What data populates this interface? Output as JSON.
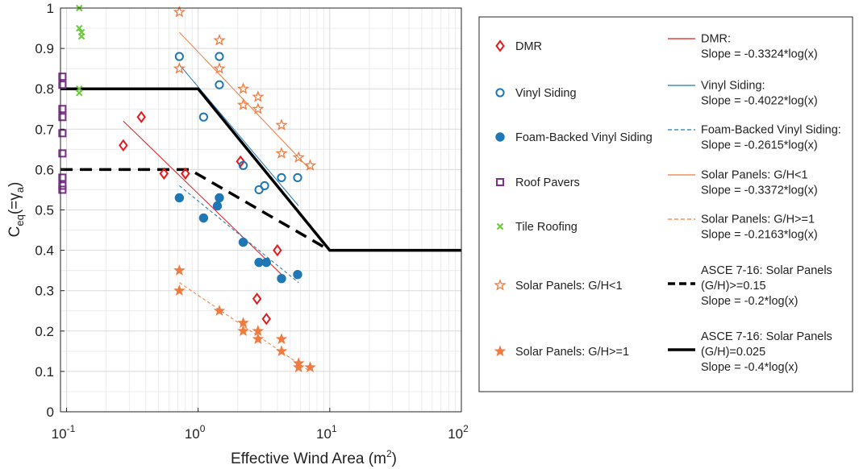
{
  "chart_data": {
    "type": "scatter",
    "x_scale": "log",
    "xlabel": "Effective Wind Area (m",
    "xlabel_sup": "2",
    "xlabel_close": ")",
    "ylabel_main": "C",
    "ylabel_sub_eq": "eq",
    "ylabel_paren": "(=γ",
    "ylabel_sub_a": "a",
    "ylabel_close": ")",
    "xlim": [
      0.09,
      100
    ],
    "ylim": [
      0,
      1
    ],
    "x_tick_base": "10",
    "x_ticks": [
      {
        "value": 0.1,
        "exp": "-1"
      },
      {
        "value": 1,
        "exp": "0"
      },
      {
        "value": 10,
        "exp": "1"
      },
      {
        "value": 100,
        "exp": "2"
      }
    ],
    "y_ticks": [
      "0",
      "0.1",
      "0.2",
      "0.3",
      "0.4",
      "0.5",
      "0.6",
      "0.7",
      "0.8",
      "0.9",
      "1"
    ],
    "grid": true,
    "colors": {
      "dmr": "#e41a1c",
      "vinyl": "#1f77b4",
      "solar": "#f07b3f",
      "pavers": "#7e2f8e",
      "tile": "#66cc33",
      "asce": "#000000"
    },
    "scatter_series": [
      {
        "name": "DMR",
        "marker": "diamond",
        "color": "#e41a1c",
        "points": [
          [
            0.27,
            0.66
          ],
          [
            0.37,
            0.73
          ],
          [
            0.55,
            0.59
          ],
          [
            0.8,
            0.59
          ],
          [
            2.1,
            0.62
          ],
          [
            2.8,
            0.28
          ],
          [
            3.3,
            0.23
          ],
          [
            4.0,
            0.4
          ]
        ]
      },
      {
        "name": "Vinyl Siding",
        "marker": "circle-open",
        "color": "#1f77b4",
        "points": [
          [
            0.72,
            0.88
          ],
          [
            1.1,
            0.73
          ],
          [
            1.45,
            0.88
          ],
          [
            1.45,
            0.81
          ],
          [
            2.2,
            0.61
          ],
          [
            2.9,
            0.55
          ],
          [
            3.2,
            0.56
          ],
          [
            4.3,
            0.58
          ],
          [
            5.7,
            0.58
          ]
        ]
      },
      {
        "name": "Foam-Backed Vinyl Siding",
        "marker": "circle-filled",
        "color": "#1f77b4",
        "points": [
          [
            0.72,
            0.53
          ],
          [
            1.1,
            0.48
          ],
          [
            1.4,
            0.51
          ],
          [
            1.45,
            0.53
          ],
          [
            2.2,
            0.42
          ],
          [
            2.9,
            0.37
          ],
          [
            3.3,
            0.37
          ],
          [
            4.3,
            0.33
          ],
          [
            5.7,
            0.34
          ]
        ]
      },
      {
        "name": "Roof Pavers",
        "marker": "square",
        "color": "#7e2f8e",
        "points": [
          [
            0.093,
            0.83
          ],
          [
            0.093,
            0.81
          ],
          [
            0.093,
            0.75
          ],
          [
            0.093,
            0.73
          ],
          [
            0.093,
            0.69
          ],
          [
            0.093,
            0.64
          ],
          [
            0.093,
            0.58
          ],
          [
            0.093,
            0.56
          ],
          [
            0.093,
            0.55
          ]
        ]
      },
      {
        "name": "Tile Roofing",
        "marker": "x",
        "color": "#66cc33",
        "points": [
          [
            0.125,
            1.0
          ],
          [
            0.125,
            0.95
          ],
          [
            0.13,
            0.94
          ],
          [
            0.13,
            0.93
          ],
          [
            0.125,
            0.8
          ],
          [
            0.125,
            0.79
          ]
        ]
      },
      {
        "name": "Solar Panels: G/H<1",
        "marker": "star-open",
        "color": "#f07b3f",
        "points": [
          [
            0.72,
            0.99
          ],
          [
            0.72,
            0.85
          ],
          [
            1.45,
            0.92
          ],
          [
            1.45,
            0.85
          ],
          [
            2.2,
            0.8
          ],
          [
            2.2,
            0.76
          ],
          [
            2.85,
            0.78
          ],
          [
            2.85,
            0.75
          ],
          [
            4.3,
            0.71
          ],
          [
            4.3,
            0.64
          ],
          [
            5.8,
            0.63
          ],
          [
            7.1,
            0.61
          ]
        ]
      },
      {
        "name": "Solar Panels: G/H>=1",
        "marker": "star-filled",
        "color": "#f07b3f",
        "points": [
          [
            0.72,
            0.35
          ],
          [
            0.72,
            0.3
          ],
          [
            1.45,
            0.25
          ],
          [
            2.2,
            0.22
          ],
          [
            2.2,
            0.2
          ],
          [
            2.85,
            0.2
          ],
          [
            2.85,
            0.18
          ],
          [
            4.3,
            0.18
          ],
          [
            4.3,
            0.15
          ],
          [
            5.8,
            0.12
          ],
          [
            5.8,
            0.11
          ],
          [
            7.1,
            0.11
          ]
        ]
      }
    ],
    "fit_lines": [
      {
        "name": "DMR",
        "color": "#e41a1c",
        "dash": false,
        "x": [
          0.27,
          4.3
        ],
        "y": [
          0.72,
          0.34
        ]
      },
      {
        "name": "Vinyl Siding",
        "color": "#1f77b4",
        "dash": false,
        "x": [
          0.72,
          5.8
        ],
        "y": [
          0.86,
          0.51
        ]
      },
      {
        "name": "Foam-Backed Vinyl Siding",
        "color": "#1f77b4",
        "dash": true,
        "x": [
          0.72,
          5.8
        ],
        "y": [
          0.56,
          0.32
        ]
      },
      {
        "name": "Solar Panels: G/H<1",
        "color": "#f07b3f",
        "dash": false,
        "x": [
          0.72,
          7.1
        ],
        "y": [
          0.94,
          0.6
        ]
      },
      {
        "name": "Solar Panels: G/H>=1",
        "color": "#f07b3f",
        "dash": true,
        "x": [
          0.72,
          7.1
        ],
        "y": [
          0.32,
          0.1
        ]
      }
    ],
    "asce_lines": [
      {
        "name": "ASCE 7-16: Solar Panels (G/H)>=0.15",
        "dash": true,
        "x": [
          0.09,
          0.86,
          10
        ],
        "y": [
          0.6,
          0.6,
          0.4
        ]
      },
      {
        "name": "ASCE 7-16: Solar Panels (G/H)=0.025",
        "dash": false,
        "x": [
          0.09,
          1.0,
          10,
          100
        ],
        "y": [
          0.8,
          0.8,
          0.4,
          0.4
        ]
      }
    ],
    "legend_placement": "right",
    "legend_markers": [
      {
        "label": "DMR",
        "marker": "diamond",
        "color": "#e41a1c"
      },
      {
        "label": "Vinyl Siding",
        "marker": "circle-open",
        "color": "#1f77b4"
      },
      {
        "label": "Foam-Backed Vinyl Siding",
        "marker": "circle-filled",
        "color": "#1f77b4"
      },
      {
        "label": "Roof Pavers",
        "marker": "square",
        "color": "#7e2f8e"
      },
      {
        "label": "Tile Roofing",
        "marker": "x",
        "color": "#66cc33"
      },
      {
        "label": "Solar Panels: G/H<1",
        "marker": "star-open",
        "color": "#f07b3f"
      },
      {
        "label": "Solar Panels: G/H>=1",
        "marker": "star-filled",
        "color": "#f07b3f"
      }
    ],
    "legend_lines": [
      {
        "lines": [
          "DMR:",
          "Slope = -0.3324*log(x)"
        ],
        "color": "#e41a1c",
        "style": "solid",
        "weight": "thin"
      },
      {
        "lines": [
          "Vinyl Siding:",
          "Slope = -0.4022*log(x)"
        ],
        "color": "#1f77b4",
        "style": "solid",
        "weight": "thin"
      },
      {
        "lines": [
          "Foam-Backed Vinyl Siding:",
          "Slope = -0.2615*log(x)"
        ],
        "color": "#1f77b4",
        "style": "dash",
        "weight": "thin"
      },
      {
        "lines": [
          "Solar Panels: G/H<1",
          "Slope = -0.3372*log(x)"
        ],
        "color": "#f07b3f",
        "style": "solid",
        "weight": "thin"
      },
      {
        "lines": [
          "Solar Panels: G/H>=1",
          "Slope = -0.2163*log(x)"
        ],
        "color": "#f07b3f",
        "style": "dash",
        "weight": "thin"
      },
      {
        "lines": [
          "ASCE 7-16: Solar Panels",
          "(G/H)>=0.15",
          "Slope = -0.2*log(x)"
        ],
        "color": "#000000",
        "style": "dash",
        "weight": "thick"
      },
      {
        "lines": [
          "ASCE 7-16: Solar Panels",
          "(G/H)=0.025",
          "Slope = -0.4*log(x)"
        ],
        "color": "#000000",
        "style": "solid",
        "weight": "thick"
      }
    ]
  }
}
